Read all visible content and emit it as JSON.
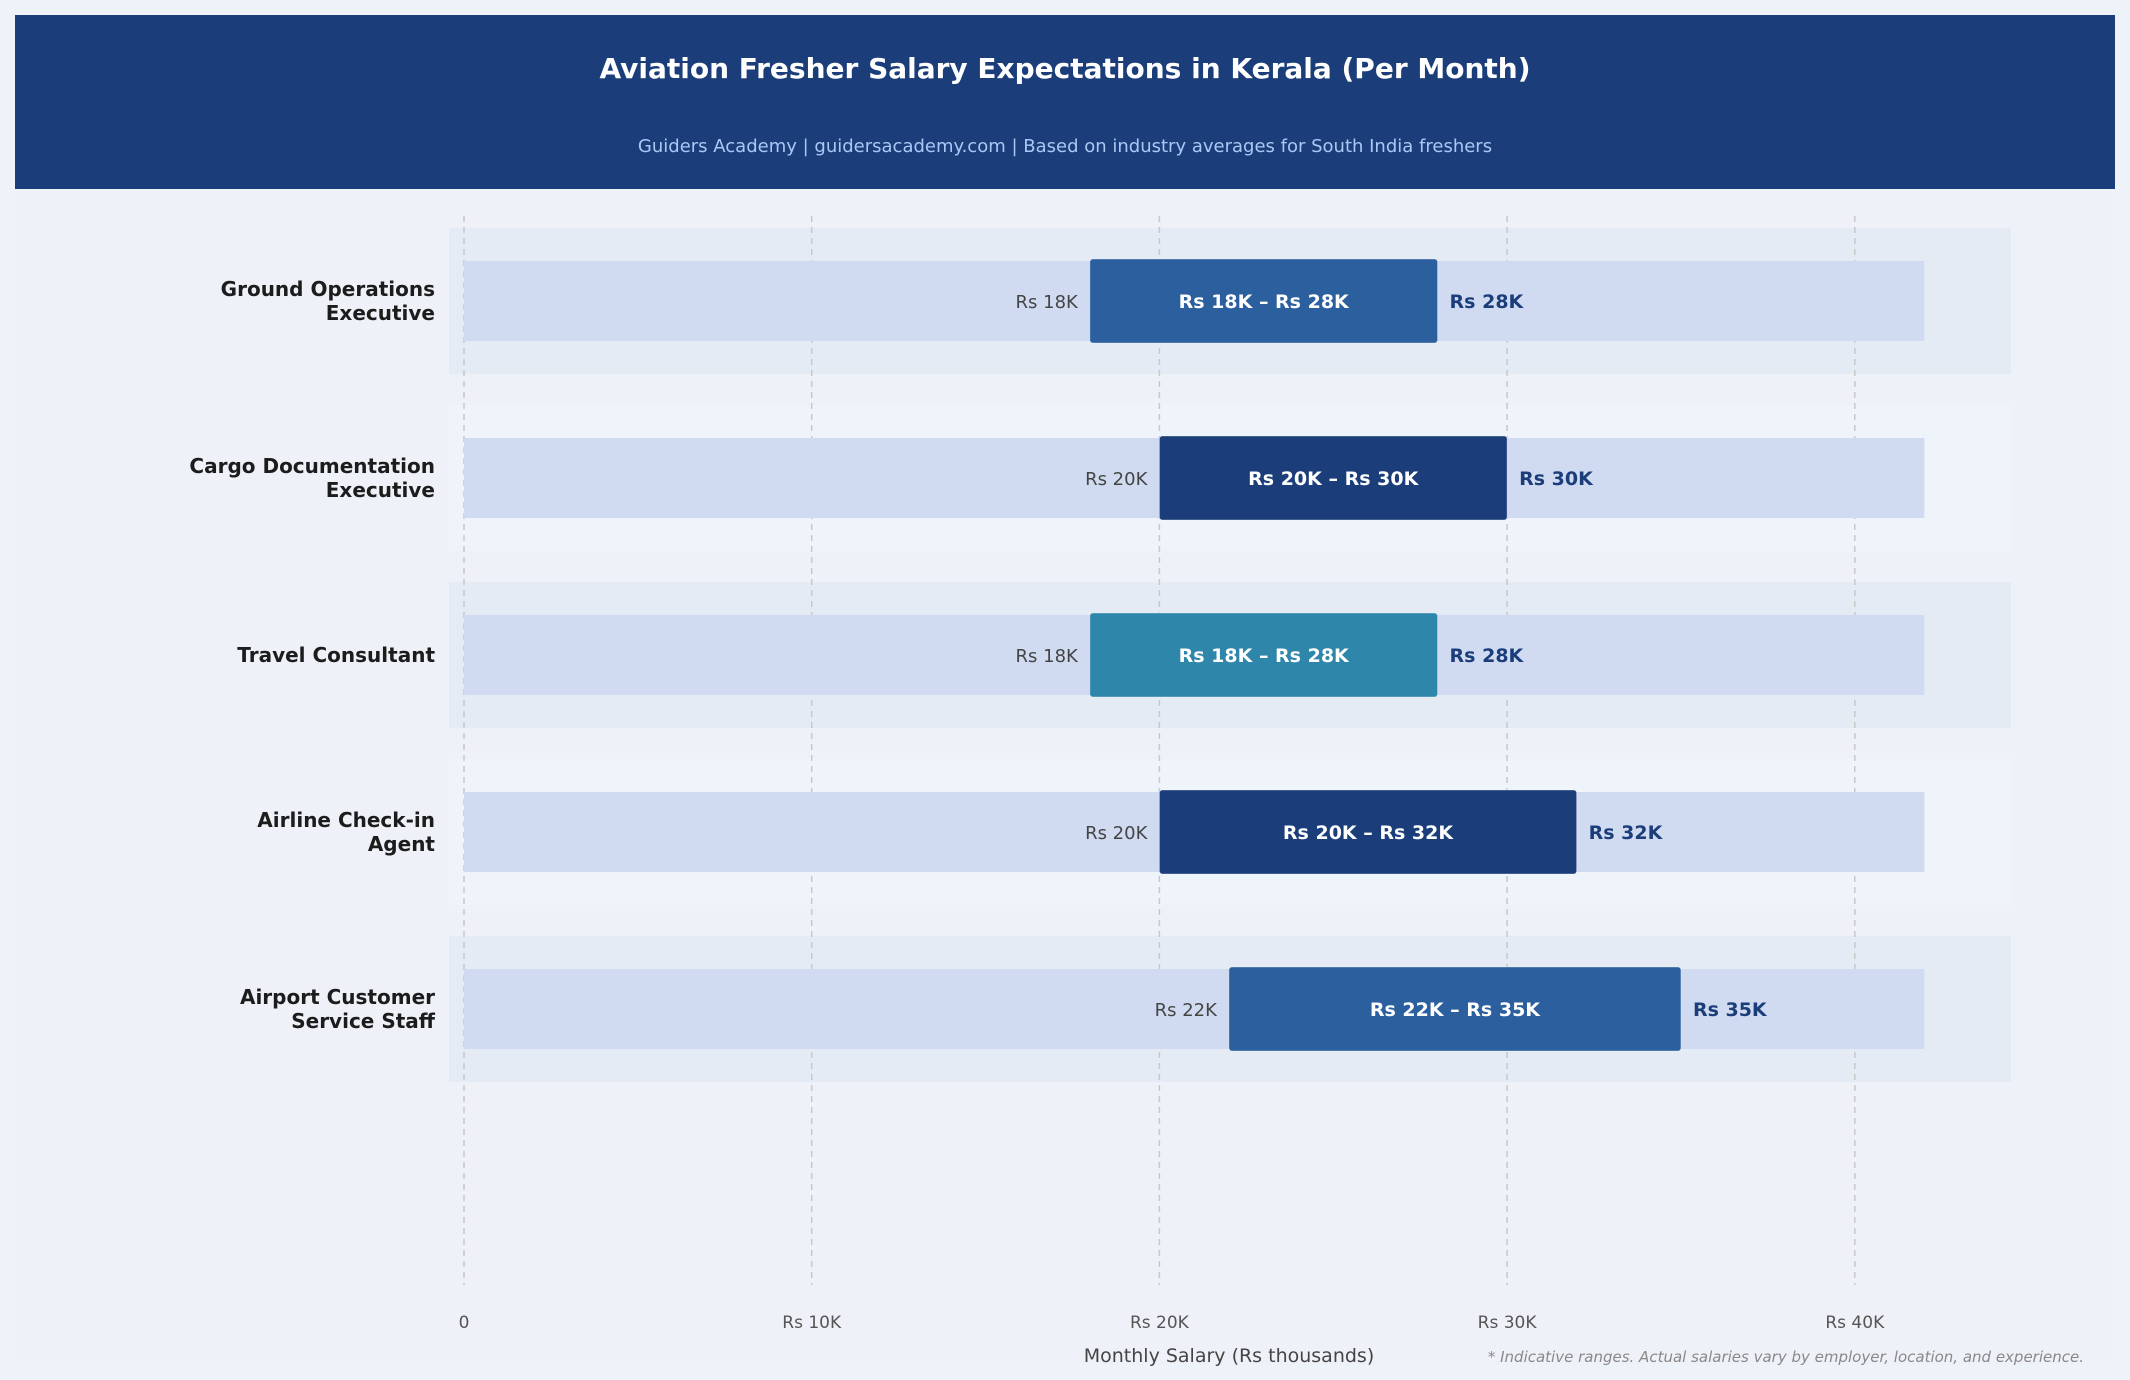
{
  "header": {
    "title": "Aviation Fresher Salary Expectations in Kerala (Per Month)",
    "subtitle": "Guiders Academy  |  guidersacademy.com  |  Based on industry averages for South India freshers"
  },
  "colors": {
    "header_bg": "#1b3e7a",
    "track": "#d0dbf1",
    "band_alt": "#e4ebf5",
    "high_label": "#1b3e7a"
  },
  "chart_data": {
    "type": "bar",
    "subtype": "horizontal-range",
    "title": "Aviation Fresher Salary Expectations in Kerala (Per Month)",
    "subtitle": "Guiders Academy  |  guidersacademy.com  |  Based on industry averages for South India freshers",
    "xlabel": "Monthly Salary (Rs thousands)",
    "ylabel": "",
    "xlim": [
      0,
      42
    ],
    "grid": true,
    "x_ticks": [
      0,
      10,
      20,
      30,
      40
    ],
    "x_tick_labels": [
      "0",
      "Rs 10K",
      "Rs 20K",
      "Rs 30K",
      "Rs 40K"
    ],
    "footnote": "* Indicative ranges. Actual salaries vary by employer, location, and experience.",
    "categories": [
      "Ground Operations\nExecutive",
      "Cargo Documentation\nExecutive",
      "Travel Consultant",
      "Airline Check-in\nAgent",
      "Airport Customer\nService Staff"
    ],
    "series": [
      {
        "name": "Salary Range",
        "values": [
          {
            "low": 18,
            "high": 28,
            "low_label": "Rs 18K",
            "high_label": "Rs 28K",
            "range_label": "Rs 18K  –  Rs 28K",
            "color": "#2c5f9e",
            "band": true
          },
          {
            "low": 20,
            "high": 30,
            "low_label": "Rs 20K",
            "high_label": "Rs 30K",
            "range_label": "Rs 20K  –  Rs 30K",
            "color": "#1b3e7a",
            "band": false
          },
          {
            "low": 18,
            "high": 28,
            "low_label": "Rs 18K",
            "high_label": "Rs 28K",
            "range_label": "Rs 18K  –  Rs 28K",
            "color": "#2e86ab",
            "band": true
          },
          {
            "low": 20,
            "high": 32,
            "low_label": "Rs 20K",
            "high_label": "Rs 32K",
            "range_label": "Rs 20K  –  Rs 32K",
            "color": "#1b3e7a",
            "band": false
          },
          {
            "low": 22,
            "high": 35,
            "low_label": "Rs 22K",
            "high_label": "Rs 35K",
            "range_label": "Rs 22K  –  Rs 35K",
            "color": "#2c5f9e",
            "band": true
          }
        ]
      }
    ]
  }
}
